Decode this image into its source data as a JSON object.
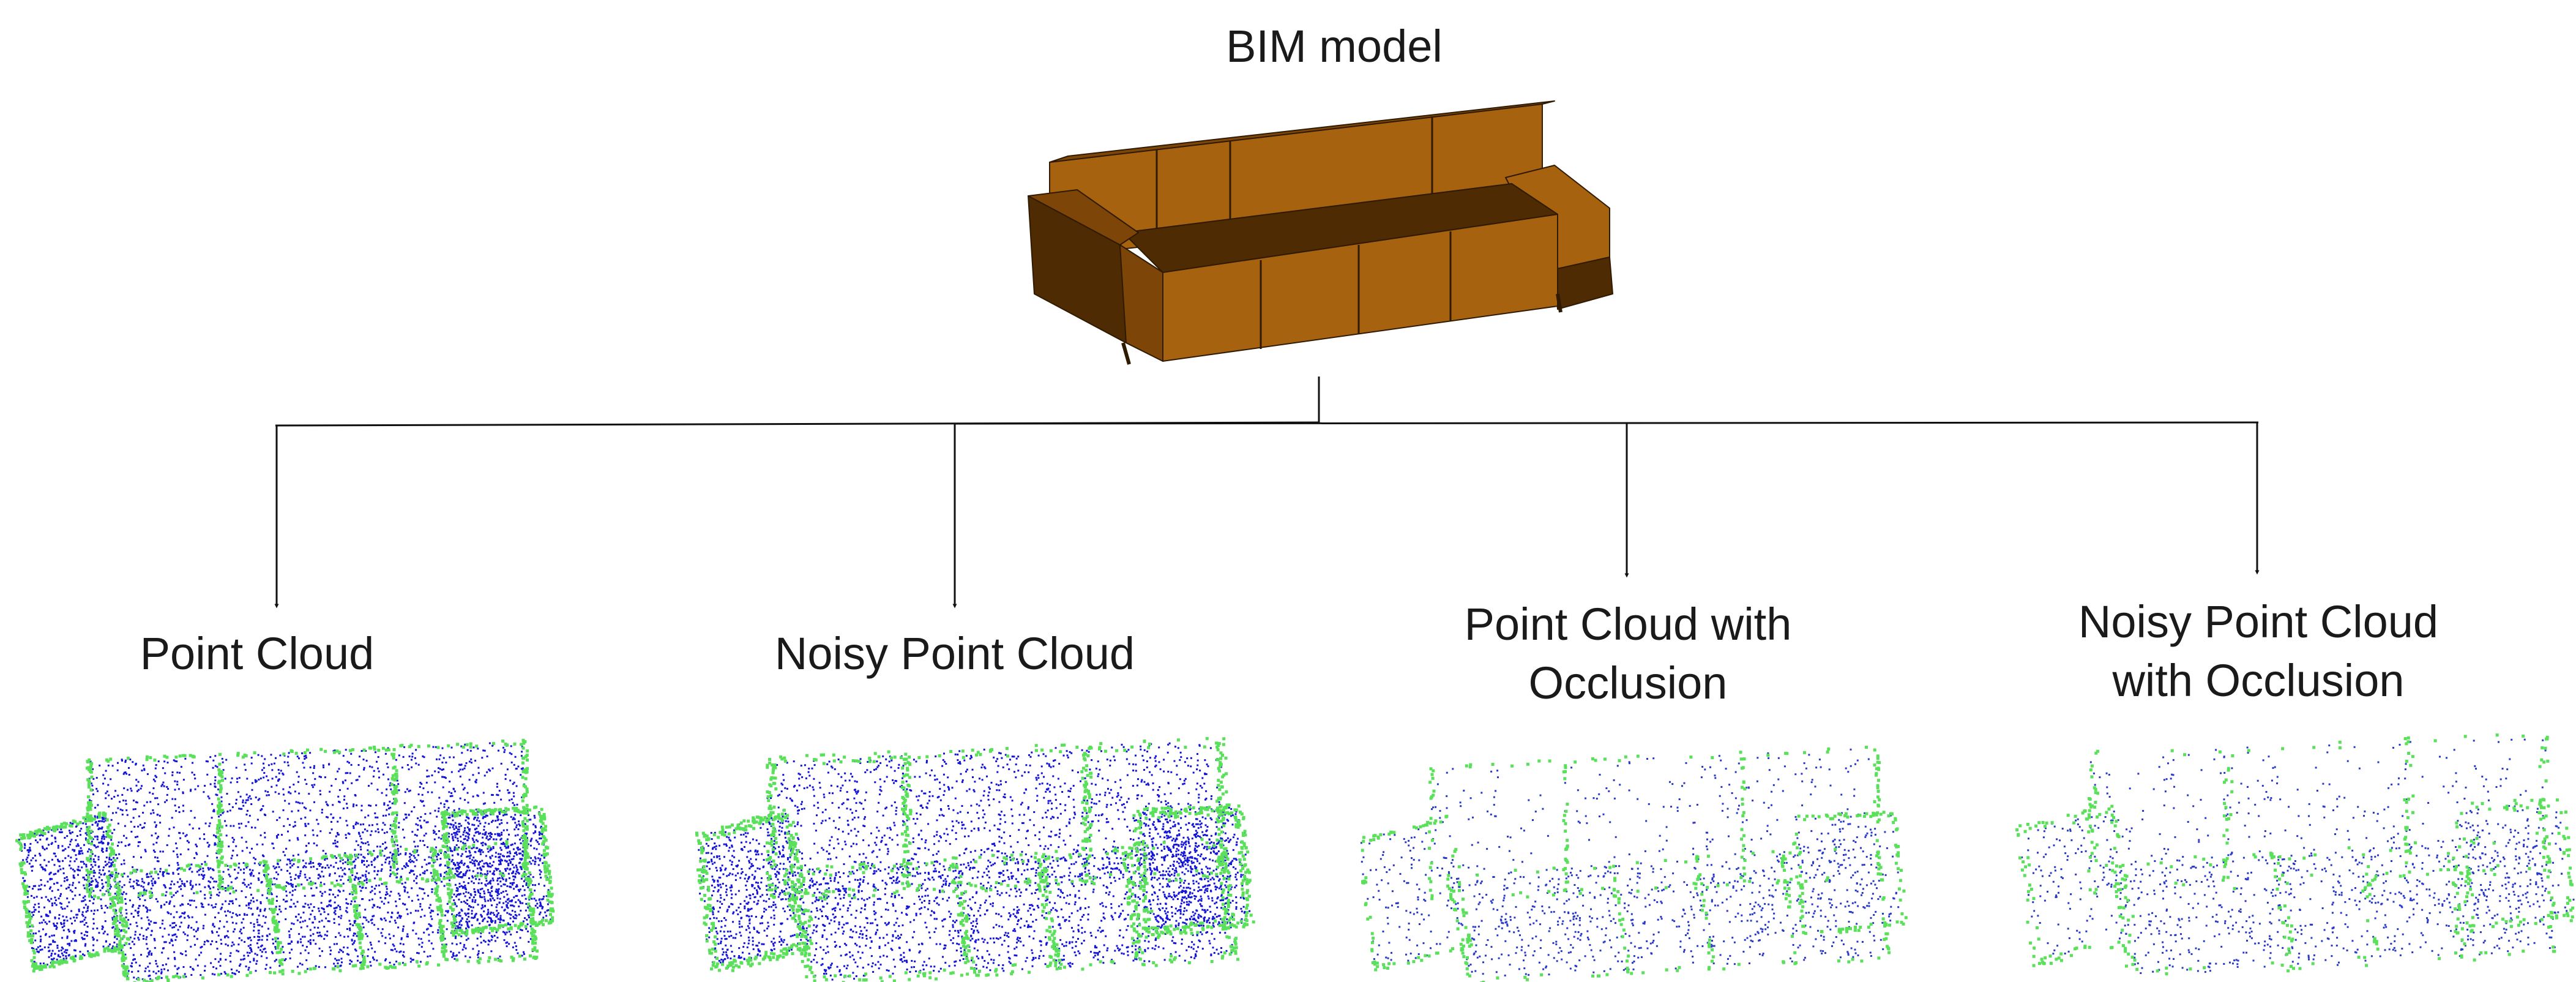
{
  "root": {
    "label": "BIM model"
  },
  "branches": [
    {
      "lines": [
        "Point Cloud"
      ]
    },
    {
      "lines": [
        "Noisy Point Cloud"
      ]
    },
    {
      "lines": [
        "Point Cloud with",
        "Occlusion"
      ]
    },
    {
      "lines": [
        "Noisy Point Cloud",
        "with Occlusion"
      ]
    }
  ],
  "colors": {
    "sofa_light": "#a7620f",
    "sofa_mid": "#7d4608",
    "sofa_dark": "#4e2b03",
    "sofa_edge": "#2f1a02",
    "point_dense": "#1414d8",
    "point_sparse": "#2a3ac8",
    "point_edge": "#5be05b",
    "connector": "#111111"
  }
}
